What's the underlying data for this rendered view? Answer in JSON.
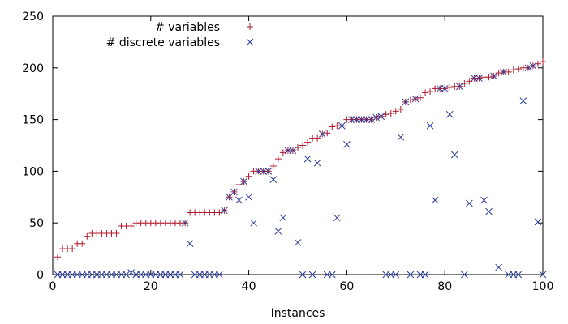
{
  "chart_data": {
    "type": "scatter",
    "title": "",
    "xlabel": "Instances",
    "ylabel": "",
    "xlim": [
      0,
      100
    ],
    "ylim": [
      0,
      250
    ],
    "xticks": [
      0,
      20,
      40,
      60,
      80,
      100
    ],
    "yticks": [
      0,
      50,
      100,
      150,
      200,
      250
    ],
    "grid": false,
    "legend_position": "top-left",
    "series": [
      {
        "name": "# variables",
        "marker": "plus",
        "color": "#b2182b",
        "x": [
          1,
          2,
          3,
          4,
          5,
          6,
          7,
          8,
          9,
          10,
          11,
          12,
          13,
          14,
          15,
          16,
          17,
          18,
          19,
          20,
          21,
          22,
          23,
          24,
          25,
          26,
          27,
          28,
          29,
          30,
          31,
          32,
          33,
          34,
          35,
          36,
          37,
          38,
          39,
          40,
          41,
          42,
          43,
          44,
          45,
          46,
          47,
          48,
          49,
          50,
          51,
          52,
          53,
          54,
          55,
          56,
          57,
          58,
          59,
          60,
          61,
          62,
          63,
          64,
          65,
          66,
          67,
          68,
          69,
          70,
          71,
          72,
          73,
          74,
          75,
          76,
          77,
          78,
          79,
          80,
          81,
          82,
          83,
          84,
          85,
          86,
          87,
          88,
          89,
          90,
          91,
          92,
          93,
          94,
          95,
          96,
          97,
          98,
          99,
          100
        ],
        "y": [
          17,
          25,
          25,
          25,
          30,
          30,
          37,
          40,
          40,
          40,
          40,
          40,
          40,
          47,
          47,
          47,
          50,
          50,
          50,
          50,
          50,
          50,
          50,
          50,
          50,
          50,
          50,
          60,
          60,
          60,
          60,
          60,
          60,
          60,
          62,
          75,
          80,
          87,
          90,
          95,
          100,
          100,
          100,
          100,
          105,
          112,
          118,
          120,
          120,
          123,
          125,
          128,
          132,
          132,
          136,
          137,
          143,
          144,
          144,
          150,
          150,
          150,
          150,
          150,
          150,
          152,
          153,
          155,
          156,
          158,
          160,
          167,
          169,
          170,
          171,
          176,
          177,
          180,
          180,
          180,
          181,
          182,
          182,
          185,
          187,
          190,
          190,
          191,
          191,
          192,
          195,
          196,
          196,
          198,
          199,
          200,
          200,
          202,
          204,
          206
        ]
      },
      {
        "name": "# discrete variables",
        "marker": "cross",
        "color": "#2c3e9e",
        "x": [
          1,
          2,
          3,
          4,
          5,
          6,
          7,
          8,
          9,
          10,
          11,
          12,
          13,
          14,
          15,
          16,
          17,
          18,
          19,
          20,
          21,
          22,
          23,
          24,
          25,
          26,
          27,
          28,
          29,
          30,
          31,
          32,
          33,
          34,
          35,
          36,
          37,
          38,
          39,
          40,
          41,
          42,
          43,
          44,
          45,
          46,
          47,
          48,
          49,
          50,
          51,
          52,
          53,
          54,
          55,
          56,
          57,
          58,
          59,
          60,
          61,
          62,
          63,
          64,
          65,
          66,
          67,
          68,
          69,
          70,
          71,
          72,
          73,
          74,
          75,
          76,
          77,
          78,
          79,
          80,
          81,
          82,
          83,
          84,
          85,
          86,
          87,
          88,
          89,
          90,
          91,
          92,
          93,
          94,
          95,
          96,
          97,
          98,
          99,
          100
        ],
        "y": [
          0,
          0,
          0,
          0,
          0,
          0,
          0,
          0,
          0,
          0,
          0,
          0,
          0,
          0,
          0,
          2,
          0,
          0,
          0,
          0,
          0,
          0,
          0,
          0,
          0,
          0,
          50,
          30,
          0,
          0,
          0,
          0,
          0,
          0,
          62,
          75,
          80,
          72,
          90,
          75,
          50,
          100,
          100,
          100,
          92,
          42,
          55,
          120,
          120,
          31,
          0,
          112,
          0,
          108,
          136,
          0,
          0,
          55,
          144,
          126,
          150,
          150,
          150,
          150,
          150,
          152,
          153,
          0,
          0,
          0,
          133,
          167,
          0,
          170,
          0,
          0,
          144,
          72,
          180,
          180,
          155,
          116,
          182,
          0,
          69,
          190,
          190,
          72,
          61,
          192,
          7,
          196,
          0,
          0,
          0,
          168,
          200,
          202,
          51,
          0
        ]
      }
    ]
  }
}
